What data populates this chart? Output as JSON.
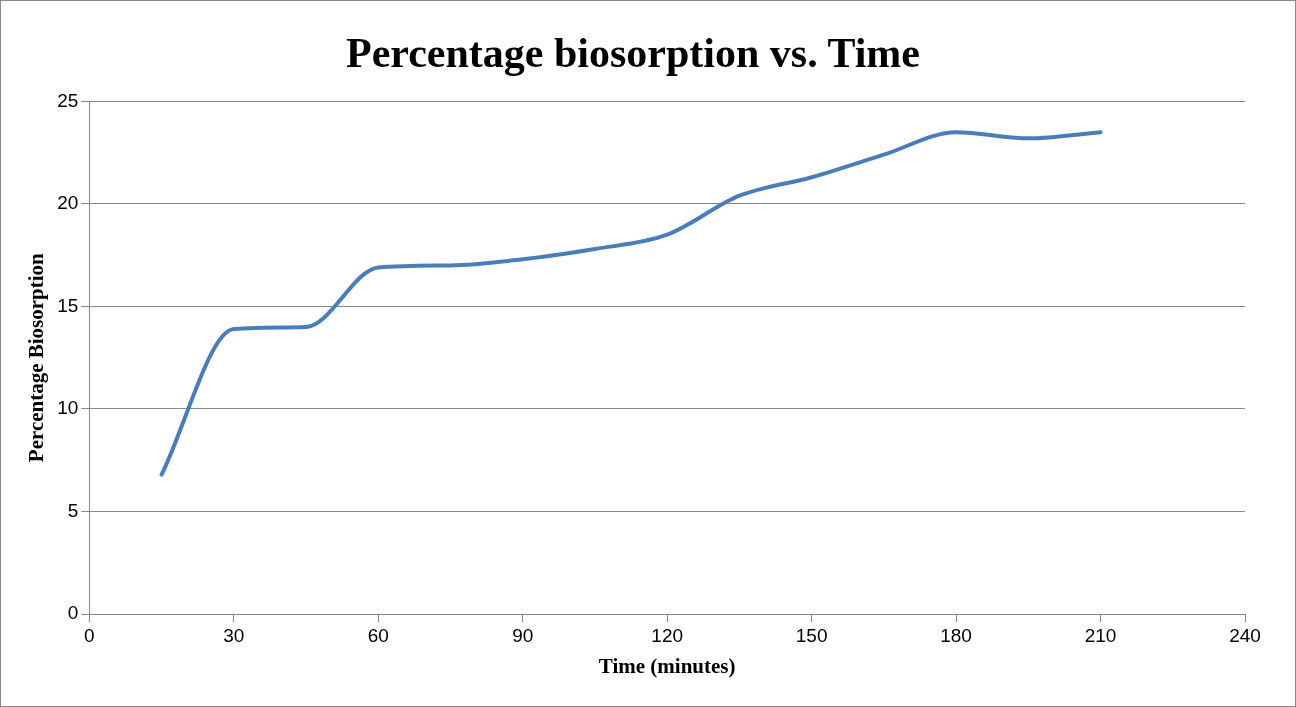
{
  "chart_data": {
    "type": "line",
    "title": "Percentage biosorption vs. Time",
    "xlabel": "Time (minutes)",
    "ylabel": "Percentage Biosorption",
    "x": [
      15,
      30,
      45,
      60,
      75,
      90,
      105,
      120,
      135,
      150,
      165,
      180,
      195,
      210
    ],
    "series": [
      {
        "color": "#4a7ebb",
        "values": [
          6.8,
          13.9,
          14.0,
          16.9,
          17.0,
          17.3,
          17.8,
          18.5,
          20.4,
          21.3,
          22.4,
          23.5,
          23.2,
          23.5
        ]
      }
    ],
    "xlim": [
      0,
      240
    ],
    "xticks": [
      0,
      30,
      60,
      90,
      120,
      150,
      180,
      210,
      240
    ],
    "ylim": [
      0,
      25
    ],
    "yticks": [
      0,
      5,
      10,
      15,
      20,
      25
    ],
    "grid": "y",
    "legend": false,
    "marker": "none",
    "line_style": "solid"
  }
}
